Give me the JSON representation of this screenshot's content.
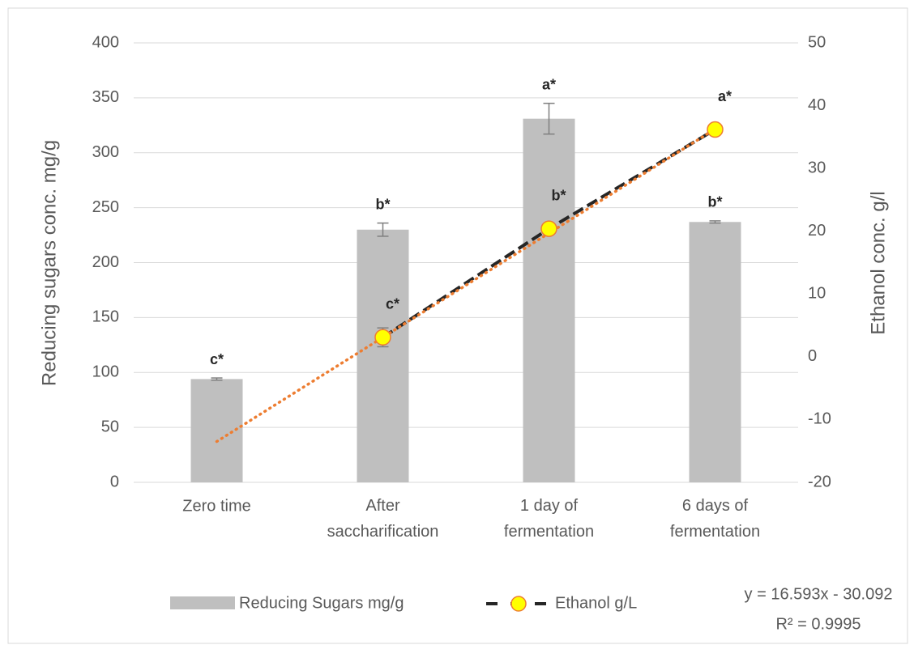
{
  "chart_data": {
    "type": "bar_line",
    "categories": [
      "Zero time",
      "After saccharification",
      "1 day of fermentation",
      "6 days of fermentation"
    ],
    "series": [
      {
        "name": "Reducing Sugars mg/g",
        "type": "bar",
        "color": "#bfbfbf",
        "values": [
          94,
          230,
          331,
          237
        ],
        "errors": [
          1,
          6,
          14,
          1
        ],
        "labels": [
          "c*",
          "b*",
          "a*",
          "b*"
        ]
      },
      {
        "name": "Ethanol g/L",
        "type": "line",
        "axis": "y2",
        "color": "#262626",
        "marker_color": "#ffff00",
        "marker_edge": "#ed7d31",
        "values": [
          null,
          3.1,
          20.4,
          36.2
        ],
        "errors": [
          null,
          1.5,
          null,
          null
        ],
        "labels": [
          null,
          "c*",
          "b*",
          "a*"
        ]
      }
    ],
    "trendline": {
      "color": "#ed7d31",
      "slope": 16.593,
      "intercept": -30.092,
      "label": "y = 16.593x - 30.092",
      "r2_label": "R² = 0.9995"
    },
    "ylabel": "Reducing sugars conc. mg/g",
    "y2label": "Ethanol  conc. g/l",
    "ylim": [
      0,
      400
    ],
    "yticks": [
      0,
      50,
      100,
      150,
      200,
      250,
      300,
      350,
      400
    ],
    "y2lim": [
      -20,
      50
    ],
    "y2ticks": [
      -20,
      -10,
      0,
      10,
      20,
      30,
      40,
      50
    ],
    "grid": true
  }
}
